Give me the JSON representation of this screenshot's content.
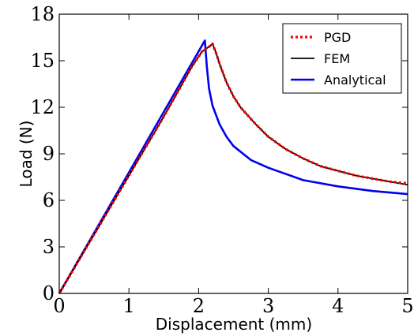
{
  "chart_data": {
    "type": "line",
    "title": "",
    "xlabel": "Displacement (mm)",
    "ylabel": "Load (N)",
    "xlim": [
      0,
      5
    ],
    "ylim": [
      0,
      18
    ],
    "xticks": [
      0,
      1,
      2,
      3,
      4,
      5
    ],
    "yticks": [
      0,
      3,
      6,
      9,
      12,
      15,
      18
    ],
    "grid": false,
    "legend": "top-right",
    "series": [
      {
        "name": "PGD",
        "color": "#ff0000",
        "style": "dotted",
        "x": [
          0,
          0.5,
          1.0,
          1.5,
          1.9,
          2.05,
          2.15,
          2.2,
          2.25,
          2.3,
          2.4,
          2.5,
          2.6,
          2.8,
          3.0,
          3.25,
          3.5,
          3.75,
          4.0,
          4.25,
          4.5,
          4.75,
          5.0
        ],
        "y": [
          0,
          3.8,
          7.6,
          11.4,
          14.6,
          15.6,
          15.9,
          16.1,
          15.5,
          14.8,
          13.6,
          12.7,
          12.0,
          11.0,
          10.1,
          9.3,
          8.7,
          8.2,
          7.9,
          7.6,
          7.4,
          7.2,
          7.1
        ]
      },
      {
        "name": "FEM",
        "color": "#000000",
        "style": "solid",
        "x": [
          0,
          0.5,
          1.0,
          1.5,
          1.9,
          2.05,
          2.15,
          2.2,
          2.25,
          2.3,
          2.4,
          2.5,
          2.6,
          2.8,
          3.0,
          3.25,
          3.5,
          3.75,
          4.0,
          4.25,
          4.5,
          4.75,
          5.0
        ],
        "y": [
          0,
          3.8,
          7.6,
          11.4,
          14.6,
          15.6,
          15.9,
          16.1,
          15.5,
          14.8,
          13.6,
          12.7,
          12.0,
          11.0,
          10.1,
          9.3,
          8.7,
          8.2,
          7.9,
          7.6,
          7.4,
          7.2,
          7.0
        ]
      },
      {
        "name": "Analytical",
        "color": "#0000ee",
        "style": "solid",
        "x": [
          0,
          0.5,
          1.0,
          1.5,
          2.0,
          2.09,
          2.12,
          2.15,
          2.2,
          2.3,
          2.4,
          2.5,
          2.75,
          3.0,
          3.5,
          4.0,
          4.5,
          5.0
        ],
        "y": [
          0,
          3.9,
          7.8,
          11.7,
          15.6,
          16.3,
          14.5,
          13.2,
          12.1,
          10.9,
          10.1,
          9.5,
          8.6,
          8.1,
          7.3,
          6.9,
          6.6,
          6.4
        ]
      }
    ]
  }
}
